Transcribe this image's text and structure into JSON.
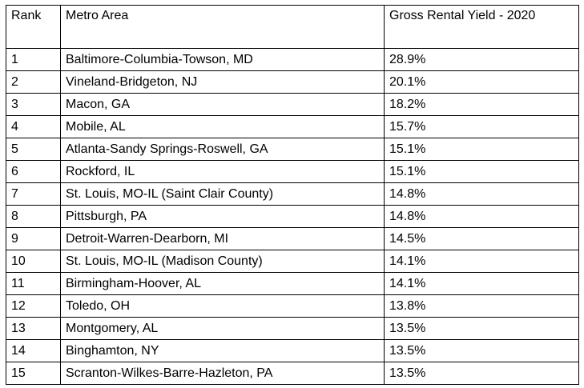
{
  "table": {
    "headers": {
      "rank": "Rank",
      "metro": "Metro Area",
      "yield": "Gross Rental Yield - 2020"
    },
    "rows": [
      {
        "rank": "1",
        "metro": "Baltimore-Columbia-Towson, MD",
        "yield": "28.9%"
      },
      {
        "rank": "2",
        "metro": "Vineland-Bridgeton, NJ",
        "yield": "20.1%"
      },
      {
        "rank": "3",
        "metro": "Macon, GA",
        "yield": "18.2%"
      },
      {
        "rank": "4",
        "metro": "Mobile, AL",
        "yield": "15.7%"
      },
      {
        "rank": "5",
        "metro": "Atlanta-Sandy Springs-Roswell, GA",
        "yield": "15.1%"
      },
      {
        "rank": "6",
        "metro": "Rockford, IL",
        "yield": "15.1%"
      },
      {
        "rank": "7",
        "metro": "St. Louis, MO-IL (Saint Clair County)",
        "yield": "14.8%"
      },
      {
        "rank": "8",
        "metro": "Pittsburgh, PA",
        "yield": "14.8%"
      },
      {
        "rank": "9",
        "metro": "Detroit-Warren-Dearborn, MI",
        "yield": "14.5%"
      },
      {
        "rank": "10",
        "metro": "St. Louis, MO-IL (Madison County)",
        "yield": "14.1%"
      },
      {
        "rank": "11",
        "metro": "Birmingham-Hoover, AL",
        "yield": "14.1%"
      },
      {
        "rank": "12",
        "metro": "Toledo, OH",
        "yield": "13.8%"
      },
      {
        "rank": "13",
        "metro": "Montgomery, AL",
        "yield": "13.5%"
      },
      {
        "rank": "14",
        "metro": "Binghamton, NY",
        "yield": "13.5%"
      },
      {
        "rank": "15",
        "metro": "Scranton-Wilkes-Barre-Hazleton, PA",
        "yield": "13.5%"
      }
    ]
  }
}
